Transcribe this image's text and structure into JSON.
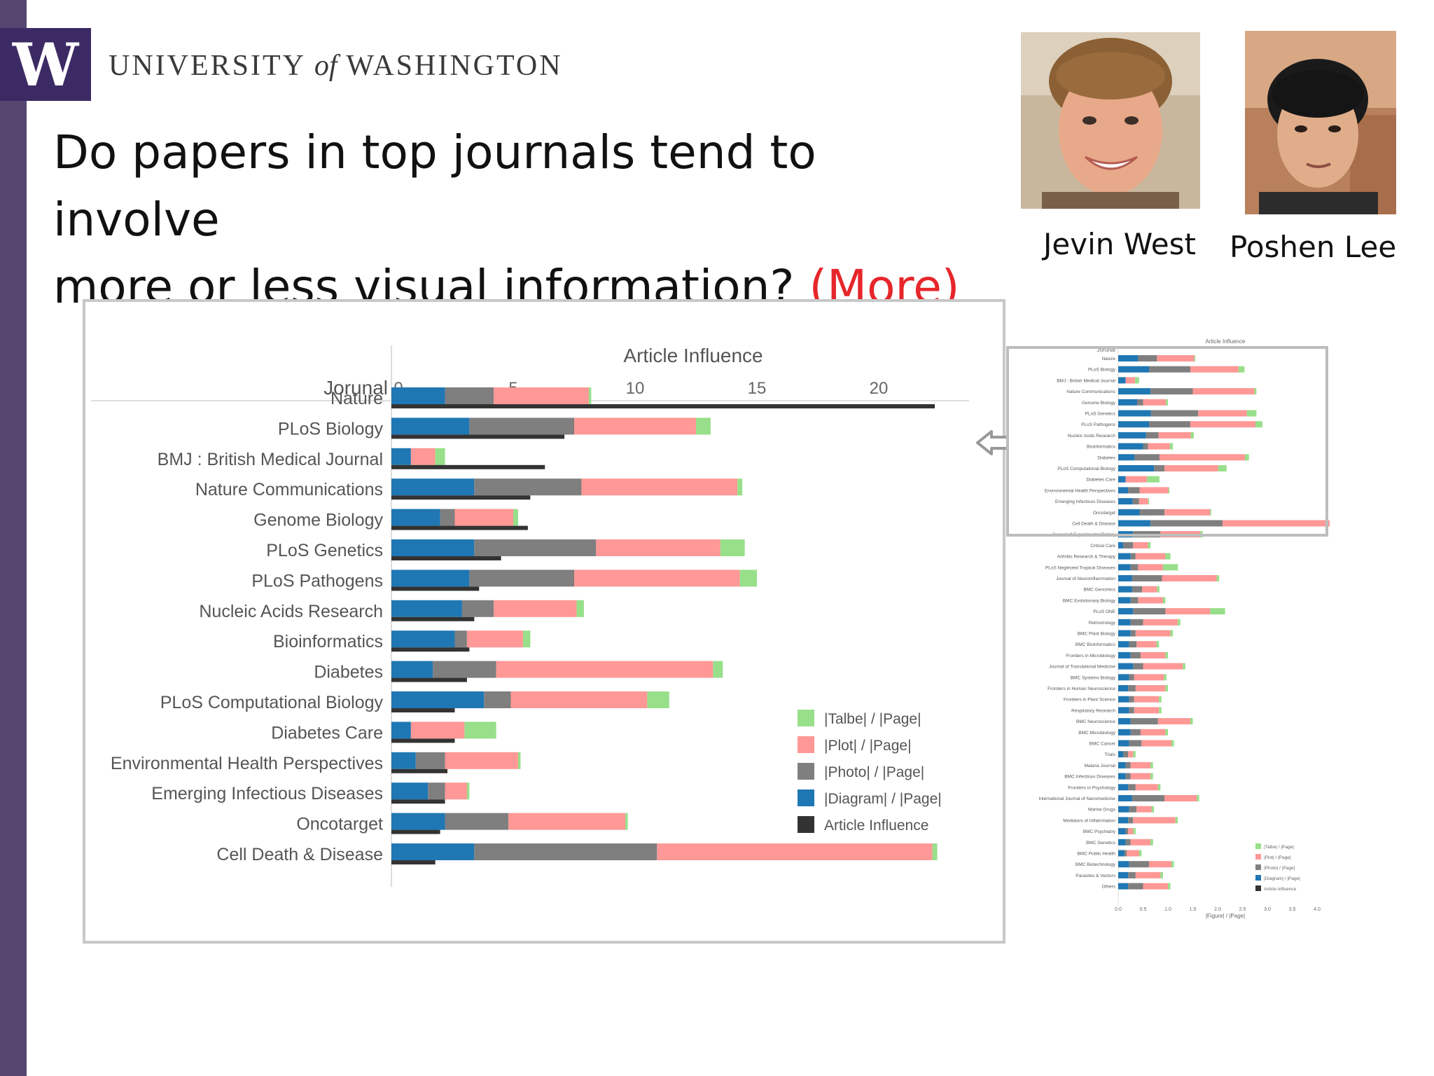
{
  "branding": {
    "logo_letter": "W",
    "name_part1": "UNIVERSITY",
    "name_of": "of",
    "name_part2": "WASHINGTON",
    "purple": "#3c2a64"
  },
  "slide": {
    "title_line1": "Do papers in top journals tend to involve",
    "title_line2": "more or less visual information?",
    "answer": "(More)",
    "answer_color": "#e6262a"
  },
  "people": [
    {
      "name": "Jevin West",
      "icon": "person-photo"
    },
    {
      "name": "Poshen Lee",
      "icon": "person-photo"
    }
  ],
  "chart_data": [
    {
      "type": "bar",
      "orientation": "horizontal",
      "stacked": true,
      "title": "Article Influence",
      "category_header": "Jorunal",
      "x_ticks": [
        0,
        5,
        10,
        15,
        20
      ],
      "xlim": [
        0,
        23
      ],
      "categories": [
        "Nature",
        "PLoS Biology",
        "BMJ : British Medical Journal",
        "Nature Communications",
        "Genome Biology",
        "PLoS Genetics",
        "PLoS Pathogens",
        "Nucleic Acids Research",
        "Bioinformatics",
        "Diabetes",
        "PLoS Computational Biology",
        "Diabetes Care",
        "Environmental Health Perspectives",
        "Emerging Infectious Diseases",
        "Oncotarget",
        "Cell Death & Disease"
      ],
      "series": [
        {
          "name": "|Diagram| / |Page|",
          "color": "#1f77b4",
          "values": [
            2.2,
            3.2,
            0.8,
            3.4,
            2.0,
            3.4,
            3.2,
            2.9,
            2.6,
            1.7,
            3.8,
            0.8,
            1.0,
            1.5,
            2.2,
            3.4
          ]
        },
        {
          "name": "|Photo| / |Page|",
          "color": "#7f7f7f",
          "values": [
            2.0,
            4.3,
            0.0,
            4.4,
            0.6,
            5.0,
            4.3,
            1.3,
            0.5,
            2.6,
            1.1,
            0.0,
            1.2,
            0.7,
            2.6,
            7.5
          ]
        },
        {
          "name": "|Plot| / |Page|",
          "color": "#ff9896",
          "values": [
            3.9,
            5.0,
            1.0,
            6.4,
            2.4,
            5.1,
            6.8,
            3.4,
            2.3,
            8.9,
            5.6,
            2.2,
            3.0,
            0.9,
            4.8,
            11.3
          ]
        },
        {
          "name": "|Talbe| / |Page|",
          "color": "#98df8a",
          "values": [
            0.1,
            0.6,
            0.4,
            0.2,
            0.2,
            1.0,
            0.7,
            0.3,
            0.3,
            0.4,
            0.9,
            1.3,
            0.1,
            0.1,
            0.1,
            0.2
          ]
        }
      ],
      "article_influence": {
        "name": "Article Influence",
        "color": "#333333",
        "values": [
          22.3,
          7.1,
          6.3,
          5.7,
          5.6,
          4.5,
          3.6,
          3.4,
          3.2,
          3.1,
          2.6,
          2.6,
          2.3,
          2.2,
          2.0,
          1.8
        ]
      },
      "legend": {
        "position": "right",
        "order": [
          "|Talbe| / |Page|",
          "|Plot| / |Page|",
          "|Photo| / |Page|",
          "|Diagram| / |Page|",
          "Article Influence"
        ]
      }
    },
    {
      "type": "bar",
      "orientation": "horizontal",
      "stacked": true,
      "title": "Article Influence",
      "category_header": "Jorunal",
      "xlabel": "|Figure| / |Page|",
      "x_ticks": [
        "0.0",
        "0.5",
        "1.0",
        "1.5",
        "2.0",
        "2.5",
        "3.0",
        "3.5",
        "4.0"
      ],
      "xlim": [
        0,
        4.2
      ],
      "categories": [
        "Nature",
        "PLoS Biology",
        "BMJ : British Medical Journal",
        "Nature Communications",
        "Genome Biology",
        "PLoS Genetics",
        "PLoS Pathogens",
        "Nucleic Acids Research",
        "Bioinformatics",
        "Diabetes",
        "PLoS Computational Biology",
        "Diabetes Care",
        "Environmental Health Perspectives",
        "Emerging Infectious Diseases",
        "Oncotarget",
        "Cell Death & Disease",
        "Journal of Experimental Botany",
        "Critical Care",
        "Arthritis Research & Therapy",
        "PLoS Neglected Tropical Diseases",
        "Journal of Neuroinflammation",
        "BMC Genomics",
        "BMC Evolutionary Biology",
        "PLoS ONE",
        "Retrovirology",
        "BMC Plant Biology",
        "BMC Bioinformatics",
        "Frontiers in Microbiology",
        "Journal of Translational Medicine",
        "BMC Systems Biology",
        "Frontiers in Human Neuroscience",
        "Frontiers in Plant Science",
        "Respiratory Research",
        "BMC Neuroscience",
        "BMC Microbiology",
        "BMC Cancer",
        "Trials",
        "Malaria Journal",
        "BMC Infectious Diseases",
        "Frontiers in Psychology",
        "International Journal of Nanomedicine",
        "Marine Drugs",
        "Mediators of Inflammation",
        "BMC Psychiatry",
        "BMC Genetics",
        "BMC Public Health",
        "BMC Biotechnology",
        "Parasites & Vectors",
        "Others"
      ],
      "series": [
        {
          "name": "|Diagram| / |Page|",
          "color": "#1f77b4",
          "values": [
            0.4,
            0.62,
            0.15,
            0.65,
            0.38,
            0.66,
            0.62,
            0.56,
            0.5,
            0.33,
            0.72,
            0.15,
            0.2,
            0.29,
            0.43,
            0.65,
            0.3,
            0.1,
            0.25,
            0.25,
            0.28,
            0.28,
            0.25,
            0.3,
            0.25,
            0.25,
            0.22,
            0.25,
            0.3,
            0.22,
            0.2,
            0.22,
            0.22,
            0.25,
            0.25,
            0.22,
            0.1,
            0.15,
            0.15,
            0.2,
            0.28,
            0.22,
            0.2,
            0.15,
            0.15,
            0.12,
            0.22,
            0.2,
            0.2
          ]
        },
        {
          "name": "|Photo| / |Page|",
          "color": "#7f7f7f",
          "values": [
            0.38,
            0.83,
            0.0,
            0.85,
            0.12,
            0.95,
            0.83,
            0.25,
            0.1,
            0.5,
            0.21,
            0.0,
            0.23,
            0.13,
            0.5,
            1.45,
            0.55,
            0.2,
            0.1,
            0.15,
            0.6,
            0.2,
            0.15,
            0.65,
            0.25,
            0.1,
            0.15,
            0.2,
            0.2,
            0.1,
            0.15,
            0.1,
            0.1,
            0.55,
            0.2,
            0.25,
            0.1,
            0.1,
            0.1,
            0.15,
            0.65,
            0.15,
            0.1,
            0.05,
            0.1,
            0.05,
            0.4,
            0.15,
            0.3
          ]
        },
        {
          "name": "|Plot| / |Page|",
          "color": "#ff9896",
          "values": [
            0.75,
            0.97,
            0.19,
            1.24,
            0.46,
            0.98,
            1.31,
            0.65,
            0.44,
            1.72,
            1.08,
            0.43,
            0.58,
            0.18,
            0.92,
            2.18,
            0.8,
            0.3,
            0.6,
            0.5,
            1.1,
            0.3,
            0.5,
            0.9,
            0.7,
            0.7,
            0.4,
            0.5,
            0.8,
            0.6,
            0.6,
            0.5,
            0.5,
            0.65,
            0.5,
            0.6,
            0.1,
            0.4,
            0.4,
            0.45,
            0.65,
            0.3,
            0.85,
            0.1,
            0.4,
            0.25,
            0.45,
            0.5,
            0.5
          ]
        },
        {
          "name": "|Talbe| / |Page|",
          "color": "#98df8a",
          "values": [
            0.02,
            0.12,
            0.08,
            0.04,
            0.04,
            0.19,
            0.14,
            0.06,
            0.06,
            0.08,
            0.17,
            0.25,
            0.02,
            0.02,
            0.02,
            0.04,
            0.05,
            0.05,
            0.1,
            0.3,
            0.05,
            0.05,
            0.05,
            0.3,
            0.05,
            0.05,
            0.05,
            0.05,
            0.05,
            0.05,
            0.05,
            0.05,
            0.05,
            0.05,
            0.05,
            0.05,
            0.05,
            0.05,
            0.05,
            0.05,
            0.05,
            0.05,
            0.05,
            0.05,
            0.05,
            0.05,
            0.05,
            0.05,
            0.05
          ]
        }
      ],
      "legend": {
        "position": "bottom-right",
        "order": [
          "|Talbe| / |Page|",
          "|Plot| / |Page|",
          "|Photo| / |Page|",
          "|Diagram| / |Page|",
          "Article Influence"
        ]
      }
    }
  ]
}
